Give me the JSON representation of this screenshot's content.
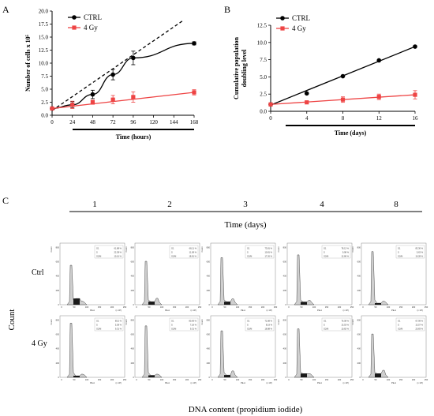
{
  "panels": {
    "a": "A",
    "b": "B",
    "c": "C"
  },
  "colors": {
    "ctrl": "#000000",
    "gy": "#ee4444",
    "fill_light": "#cfcfcf",
    "fill_dark": "#1a1a1a"
  },
  "chart_data": [
    {
      "type": "line",
      "panel": "A",
      "xlabel": "Time (hours)",
      "ylabel": "Number of cells x 10⁵",
      "xlim": [
        0,
        168
      ],
      "ylim": [
        0,
        20
      ],
      "xticks": [
        0,
        24,
        48,
        72,
        96,
        120,
        144,
        168
      ],
      "yticks": [
        0.0,
        2.5,
        5.0,
        7.5,
        10.0,
        12.5,
        15.0,
        17.5,
        20.0
      ],
      "ytick_labels": [
        "0.0",
        "2.5",
        "5.0",
        "7.5",
        "10.0",
        "12.5",
        "15.0",
        "17.5",
        "20.0"
      ],
      "legend": [
        "CTRL",
        "4 Gy"
      ],
      "legend_position": "top-left",
      "series": [
        {
          "name": "CTRL",
          "color": "#000000",
          "marker": "circle",
          "x": [
            0,
            24,
            48,
            72,
            96,
            168
          ],
          "y": [
            1.3,
            2.0,
            4.0,
            7.8,
            11.0,
            13.8
          ],
          "err": [
            0.3,
            0.6,
            0.8,
            1.0,
            1.3,
            0.3
          ]
        },
        {
          "name": "4 Gy",
          "color": "#ee4444",
          "marker": "square",
          "x": [
            0,
            24,
            48,
            72,
            96,
            168
          ],
          "y": [
            1.3,
            2.0,
            2.5,
            3.0,
            3.5,
            4.4
          ],
          "err": [
            0.3,
            0.7,
            0.4,
            0.8,
            1.0,
            0.5
          ]
        }
      ],
      "fit_line": {
        "style": "dashed",
        "x": [
          0,
          156
        ],
        "y": [
          0.9,
          18.3
        ]
      }
    },
    {
      "type": "line",
      "panel": "B",
      "xlabel": "Time (days)",
      "ylabel": "Cumulative population doubling level",
      "xlim": [
        0,
        16
      ],
      "ylim": [
        0,
        12.5
      ],
      "xticks": [
        0,
        4,
        8,
        12,
        16
      ],
      "yticks": [
        0.0,
        2.5,
        5.0,
        7.5,
        10.0,
        12.5
      ],
      "ytick_labels": [
        "0.0",
        "2.5",
        "5.0",
        "7.5",
        "10.0",
        "12.5"
      ],
      "legend": [
        "CTRL",
        "4 Gy"
      ],
      "legend_position": "top-left",
      "series": [
        {
          "name": "CTRL",
          "color": "#000000",
          "marker": "circle",
          "x": [
            0,
            4,
            8,
            12,
            16
          ],
          "y": [
            1.0,
            2.6,
            5.1,
            7.4,
            9.4
          ],
          "err": [
            0,
            0,
            0,
            0,
            0
          ]
        },
        {
          "name": "4 Gy",
          "color": "#ee4444",
          "marker": "square",
          "x": [
            0,
            4,
            8,
            12,
            16
          ],
          "y": [
            1.0,
            1.3,
            1.7,
            2.1,
            2.4
          ],
          "err": [
            0.1,
            0.2,
            0.4,
            0.4,
            0.6
          ]
        }
      ],
      "fit_lines": [
        {
          "series": "CTRL",
          "x": [
            0,
            16
          ],
          "y": [
            0.9,
            9.4
          ]
        },
        {
          "series": "4 Gy",
          "x": [
            0,
            16
          ],
          "y": [
            1.0,
            2.4
          ]
        }
      ]
    },
    {
      "type": "histogram",
      "panel": "C",
      "title": "Time (days)",
      "columns": [
        "1",
        "2",
        "3",
        "4",
        "8"
      ],
      "rows": [
        "Ctrl",
        "4 Gy"
      ],
      "ylabel": "Count",
      "xlabel": "DNA content (propidium iodide)",
      "hist_axis": {
        "yticks": [
          "0",
          "200",
          "400",
          "600",
          "800"
        ],
        "ylabel": "Count",
        "xticks": [
          "0",
          "50",
          "100",
          "150",
          "200",
          "250"
        ],
        "xlabel": "PE-A",
        "xunit": "(x 10³)"
      },
      "phases": [
        "G1",
        "S",
        "G2/M"
      ],
      "values": {
        "Ctrl": [
          [
            "61,88 %",
            "22,38 %",
            "10,16 %"
          ],
          [
            "68,11 %",
            "11,08 %",
            "18,81 %"
          ],
          [
            "73,81 %",
            "10,81 %",
            "17,26 %"
          ],
          [
            "78,12 %",
            "9,98 %",
            "12,86 %"
          ],
          [
            "83,30 %",
            "5,63 %",
            "10,28 %"
          ]
        ],
        "4 Gy": [
          [
            "85,5 %",
            "5,38 %",
            "9,31 %"
          ],
          [
            "80,69 %",
            "7,18 %",
            "9,31 %"
          ],
          [
            "72,98 %",
            "8,19 %",
            "18,88 %"
          ],
          [
            "76,08 %",
            "13,53 %",
            "10,82 %"
          ],
          [
            "67,99 %",
            "13,57 %",
            "20,83 %"
          ]
        ]
      }
    }
  ]
}
